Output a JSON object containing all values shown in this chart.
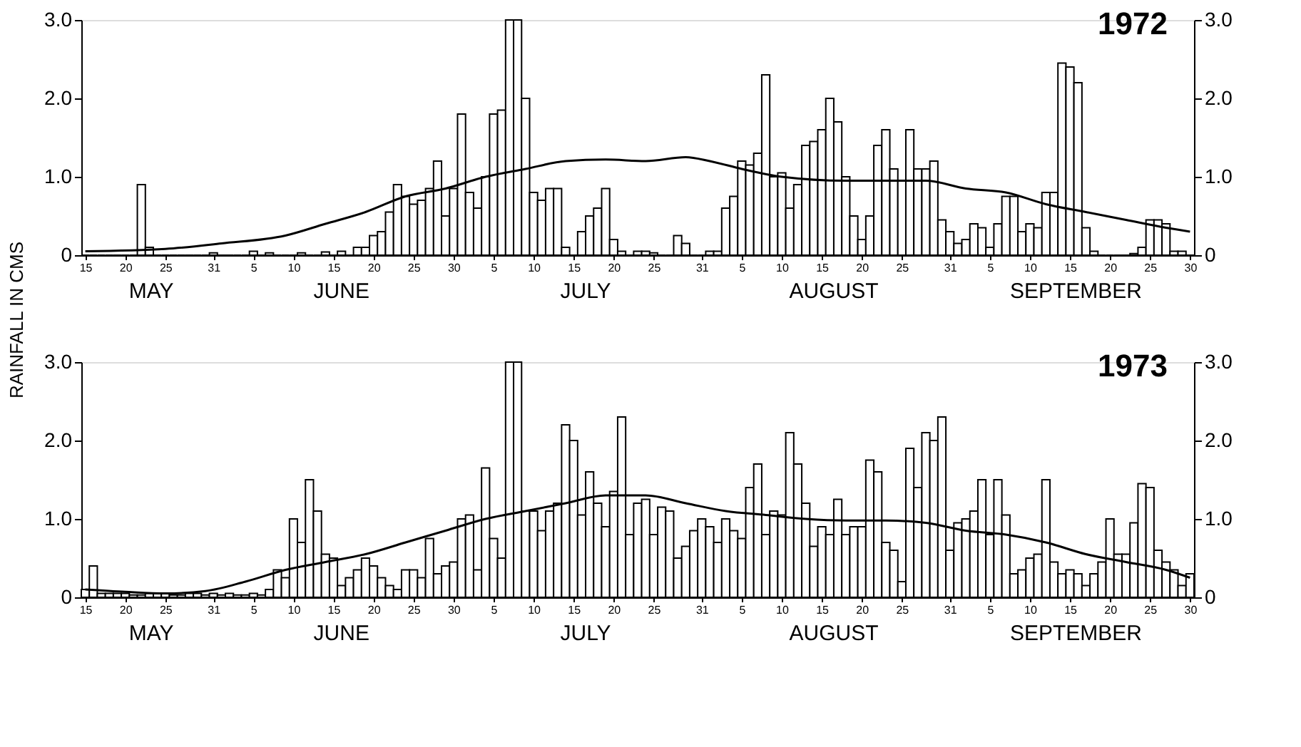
{
  "chart_data": [
    {
      "type": "bar",
      "title": "1972",
      "ylabel": "RAINFALL IN CMS",
      "annotations": [
        "MAY",
        "JUNE",
        "JULY",
        "AUGUST",
        "SEPTEMBER"
      ],
      "x": [
        "1972-05-15",
        "1972-05-16",
        "1972-05-17",
        "1972-05-18",
        "1972-05-19",
        "1972-05-20",
        "1972-05-21",
        "1972-05-22",
        "1972-05-23",
        "1972-05-24",
        "1972-05-25",
        "1972-05-26",
        "1972-05-27",
        "1972-05-28",
        "1972-05-29",
        "1972-05-30",
        "1972-05-31",
        "1972-06-01",
        "1972-06-02",
        "1972-06-03",
        "1972-06-04",
        "1972-06-05",
        "1972-06-06",
        "1972-06-07",
        "1972-06-08",
        "1972-06-09",
        "1972-06-10",
        "1972-06-11",
        "1972-06-12",
        "1972-06-13",
        "1972-06-14",
        "1972-06-15",
        "1972-06-16",
        "1972-06-17",
        "1972-06-18",
        "1972-06-19",
        "1972-06-20",
        "1972-06-21",
        "1972-06-22",
        "1972-06-23",
        "1972-06-24",
        "1972-06-25",
        "1972-06-26",
        "1972-06-27",
        "1972-06-28",
        "1972-06-29",
        "1972-06-30",
        "1972-07-01",
        "1972-07-02",
        "1972-07-03",
        "1972-07-04",
        "1972-07-05",
        "1972-07-06",
        "1972-07-07",
        "1972-07-08",
        "1972-07-09",
        "1972-07-10",
        "1972-07-11",
        "1972-07-12",
        "1972-07-13",
        "1972-07-14",
        "1972-07-15",
        "1972-07-16",
        "1972-07-17",
        "1972-07-18",
        "1972-07-19",
        "1972-07-20",
        "1972-07-21",
        "1972-07-22",
        "1972-07-23",
        "1972-07-24",
        "1972-07-25",
        "1972-07-26",
        "1972-07-27",
        "1972-07-28",
        "1972-07-29",
        "1972-07-30",
        "1972-07-31",
        "1972-08-01",
        "1972-08-02",
        "1972-08-03",
        "1972-08-04",
        "1972-08-05",
        "1972-08-06",
        "1972-08-07",
        "1972-08-08",
        "1972-08-09",
        "1972-08-10",
        "1972-08-11",
        "1972-08-12",
        "1972-08-13",
        "1972-08-14",
        "1972-08-15",
        "1972-08-16",
        "1972-08-17",
        "1972-08-18",
        "1972-08-19",
        "1972-08-20",
        "1972-08-21",
        "1972-08-22",
        "1972-08-23",
        "1972-08-24",
        "1972-08-25",
        "1972-08-26",
        "1972-08-27",
        "1972-08-28",
        "1972-08-29",
        "1972-08-30",
        "1972-08-31",
        "1972-09-01",
        "1972-09-02",
        "1972-09-03",
        "1972-09-04",
        "1972-09-05",
        "1972-09-06",
        "1972-09-07",
        "1972-09-08",
        "1972-09-09",
        "1972-09-10",
        "1972-09-11",
        "1972-09-12",
        "1972-09-13",
        "1972-09-14",
        "1972-09-15",
        "1972-09-16",
        "1972-09-17",
        "1972-09-18",
        "1972-09-19",
        "1972-09-20",
        "1972-09-21",
        "1972-09-22",
        "1972-09-23",
        "1972-09-24",
        "1972-09-25",
        "1972-09-26",
        "1972-09-27",
        "1972-09-28",
        "1972-09-29",
        "1972-09-30"
      ],
      "series": [
        {
          "color": "#000000",
          "values": [
            0,
            0,
            0,
            0,
            0,
            0,
            0,
            0.9,
            0.1,
            0,
            0,
            0,
            0,
            0,
            0,
            0,
            0.03,
            0,
            0,
            0,
            0,
            0.05,
            0,
            0.03,
            0,
            0,
            0,
            0.03,
            0,
            0,
            0.04,
            0,
            0.05,
            0,
            0.1,
            0.1,
            0.25,
            0.3,
            0.55,
            0.9,
            0.75,
            0.65,
            0.7,
            0.85,
            1.2,
            0.5,
            0.85,
            1.8,
            0.8,
            0.6,
            1.0,
            1.8,
            1.85,
            3.0,
            3.0,
            2.0,
            0.8,
            0.7,
            0.85,
            0.85,
            0.1,
            0,
            0.3,
            0.5,
            0.6,
            0.85,
            0.2,
            0.05,
            0,
            0.05,
            0.05,
            0.03,
            0,
            0,
            0.25,
            0.15,
            0,
            0,
            0.05,
            0.05,
            0.6,
            0.75,
            1.2,
            1.15,
            1.3,
            2.3,
            1.0,
            1.05,
            0.6,
            0.9,
            1.4,
            1.45,
            1.6,
            2.0,
            1.7,
            1.0,
            0.5,
            0.2,
            0.5,
            1.4,
            1.6,
            1.1,
            0.95,
            1.6,
            1.1,
            1.1,
            1.2,
            0.45,
            0.3,
            0.15,
            0.2,
            0.4,
            0.35,
            0.1,
            0.4,
            0.75,
            0.75,
            0.3,
            0.4,
            0.35,
            0.8,
            0.8,
            2.45,
            2.4,
            2.2,
            0.35,
            0.05,
            0,
            0,
            0,
            0,
            0.02,
            0.1,
            0.45,
            0.45,
            0.4,
            0.05,
            0.05,
            0
          ]
        },
        {
          "type": "line",
          "color": "#000000",
          "x": [
            "1972-05-15",
            "1972-05-25",
            "1972-06-01",
            "1972-06-09",
            "1972-06-14",
            "1972-06-19",
            "1972-06-24",
            "1972-06-29",
            "1972-07-04",
            "1972-07-09",
            "1972-07-14",
            "1972-07-19",
            "1972-07-24",
            "1972-07-29",
            "1972-08-01",
            "1972-08-05",
            "1972-08-10",
            "1972-08-18",
            "1972-08-23",
            "1972-08-28",
            "1972-09-02",
            "1972-09-07",
            "1972-09-12",
            "1972-09-17",
            "1972-09-22",
            "1972-09-27",
            "1972-09-30"
          ],
          "values": [
            0.05,
            0.08,
            0.15,
            0.25,
            0.4,
            0.55,
            0.75,
            0.85,
            1.0,
            1.1,
            1.2,
            1.22,
            1.2,
            1.25,
            1.2,
            1.1,
            1.0,
            0.95,
            0.95,
            0.95,
            0.85,
            0.8,
            0.65,
            0.55,
            0.45,
            0.35,
            0.3
          ]
        }
      ],
      "xlim": [
        "1972-05-14T12:00",
        "1972-09-30T12:00"
      ],
      "xticks": [
        {
          "value": "1972-05-15",
          "label": "15"
        },
        {
          "value": "1972-05-20",
          "label": "20"
        },
        {
          "value": "1972-05-25",
          "label": "25"
        },
        {
          "value": "1972-05-31",
          "label": "31"
        },
        {
          "value": "1972-06-05",
          "label": "5"
        },
        {
          "value": "1972-06-10",
          "label": "10"
        },
        {
          "value": "1972-06-15",
          "label": "15"
        },
        {
          "value": "1972-06-20",
          "label": "20"
        },
        {
          "value": "1972-06-25",
          "label": "25"
        },
        {
          "value": "1972-06-30",
          "label": "30"
        },
        {
          "value": "1972-07-05",
          "label": "5"
        },
        {
          "value": "1972-07-10",
          "label": "10"
        },
        {
          "value": "1972-07-15",
          "label": "15"
        },
        {
          "value": "1972-07-20",
          "label": "20"
        },
        {
          "value": "1972-07-25",
          "label": "25"
        },
        {
          "value": "1972-07-31",
          "label": "31"
        },
        {
          "value": "1972-08-05",
          "label": "5"
        },
        {
          "value": "1972-08-10",
          "label": "10"
        },
        {
          "value": "1972-08-15",
          "label": "15"
        },
        {
          "value": "1972-08-20",
          "label": "20"
        },
        {
          "value": "1972-08-25",
          "label": "25"
        },
        {
          "value": "1972-08-31",
          "label": "31"
        },
        {
          "value": "1972-09-05",
          "label": "5"
        },
        {
          "value": "1972-09-10",
          "label": "10"
        },
        {
          "value": "1972-09-15",
          "label": "15"
        },
        {
          "value": "1972-09-20",
          "label": "20"
        },
        {
          "value": "1972-09-25",
          "label": "25"
        },
        {
          "value": "1972-09-30",
          "label": "30"
        }
      ],
      "ylim": [
        0,
        3.0
      ],
      "yticks": [
        0,
        {
          "value": 1,
          "label": "1.0"
        },
        {
          "value": 2,
          "label": "2.0"
        },
        {
          "value": 3,
          "label": "3.0"
        }
      ],
      "y2lim": [
        0,
        3.0
      ],
      "y2ticks": [
        0,
        {
          "value": 1,
          "label": "1.0"
        },
        {
          "value": 2,
          "label": "2.0"
        },
        {
          "value": 3,
          "label": "3.0"
        }
      ]
    },
    {
      "type": "bar",
      "title": "1973",
      "annotations": [
        "MAY",
        "JUNE",
        "JULY",
        "AUGUST",
        "SEPTEMBER"
      ],
      "x": [
        "1973-05-15",
        "1973-05-16",
        "1973-05-17",
        "1973-05-18",
        "1973-05-19",
        "1973-05-20",
        "1973-05-21",
        "1973-05-22",
        "1973-05-23",
        "1973-05-24",
        "1973-05-25",
        "1973-05-26",
        "1973-05-27",
        "1973-05-28",
        "1973-05-29",
        "1973-05-30",
        "1973-05-31",
        "1973-06-01",
        "1973-06-02",
        "1973-06-03",
        "1973-06-04",
        "1973-06-05",
        "1973-06-06",
        "1973-06-07",
        "1973-06-08",
        "1973-06-09",
        "1973-06-10",
        "1973-06-11",
        "1973-06-12",
        "1973-06-13",
        "1973-06-14",
        "1973-06-15",
        "1973-06-16",
        "1973-06-17",
        "1973-06-18",
        "1973-06-19",
        "1973-06-20",
        "1973-06-21",
        "1973-06-22",
        "1973-06-23",
        "1973-06-24",
        "1973-06-25",
        "1973-06-26",
        "1973-06-27",
        "1973-06-28",
        "1973-06-29",
        "1973-06-30",
        "1973-07-01",
        "1973-07-02",
        "1973-07-03",
        "1973-07-04",
        "1973-07-05",
        "1973-07-06",
        "1973-07-07",
        "1973-07-08",
        "1973-07-09",
        "1973-07-10",
        "1973-07-11",
        "1973-07-12",
        "1973-07-13",
        "1973-07-14",
        "1973-07-15",
        "1973-07-16",
        "1973-07-17",
        "1973-07-18",
        "1973-07-19",
        "1973-07-20",
        "1973-07-21",
        "1973-07-22",
        "1973-07-23",
        "1973-07-24",
        "1973-07-25",
        "1973-07-26",
        "1973-07-27",
        "1973-07-28",
        "1973-07-29",
        "1973-07-30",
        "1973-07-31",
        "1973-08-01",
        "1973-08-02",
        "1973-08-03",
        "1973-08-04",
        "1973-08-05",
        "1973-08-06",
        "1973-08-07",
        "1973-08-08",
        "1973-08-09",
        "1973-08-10",
        "1973-08-11",
        "1973-08-12",
        "1973-08-13",
        "1973-08-14",
        "1973-08-15",
        "1973-08-16",
        "1973-08-17",
        "1973-08-18",
        "1973-08-19",
        "1973-08-20",
        "1973-08-21",
        "1973-08-22",
        "1973-08-23",
        "1973-08-24",
        "1973-08-25",
        "1973-08-26",
        "1973-08-27",
        "1973-08-28",
        "1973-08-29",
        "1973-08-30",
        "1973-08-31",
        "1973-09-01",
        "1973-09-02",
        "1973-09-03",
        "1973-09-04",
        "1973-09-05",
        "1973-09-06",
        "1973-09-07",
        "1973-09-08",
        "1973-09-09",
        "1973-09-10",
        "1973-09-11",
        "1973-09-12",
        "1973-09-13",
        "1973-09-14",
        "1973-09-15",
        "1973-09-16",
        "1973-09-17",
        "1973-09-18",
        "1973-09-19",
        "1973-09-20",
        "1973-09-21",
        "1973-09-22",
        "1973-09-23",
        "1973-09-24",
        "1973-09-25",
        "1973-09-26",
        "1973-09-27",
        "1973-09-28",
        "1973-09-29",
        "1973-09-30"
      ],
      "series": [
        {
          "color": "#000000",
          "values": [
            0.1,
            0.4,
            0.05,
            0.05,
            0.05,
            0.05,
            0.03,
            0.03,
            0.05,
            0.05,
            0.05,
            0.03,
            0.03,
            0.05,
            0.05,
            0.03,
            0.05,
            0.03,
            0.05,
            0.03,
            0.03,
            0.05,
            0.03,
            0.1,
            0.35,
            0.25,
            1.0,
            0.7,
            1.5,
            1.1,
            0.55,
            0.5,
            0.15,
            0.25,
            0.35,
            0.5,
            0.4,
            0.25,
            0.15,
            0.1,
            0.35,
            0.35,
            0.25,
            0.75,
            0.3,
            0.4,
            0.45,
            1.0,
            1.05,
            0.35,
            1.65,
            0.75,
            0.5,
            3.0,
            3.0,
            1.1,
            1.1,
            0.85,
            1.1,
            1.2,
            2.2,
            2.0,
            1.05,
            1.6,
            1.2,
            0.9,
            1.35,
            2.3,
            0.8,
            1.2,
            1.25,
            0.8,
            1.15,
            1.1,
            0.5,
            0.65,
            0.85,
            1.0,
            0.9,
            0.7,
            1.0,
            0.85,
            0.75,
            1.4,
            1.7,
            0.8,
            1.1,
            1.05,
            2.1,
            1.7,
            1.2,
            0.65,
            0.9,
            0.8,
            1.25,
            0.8,
            0.9,
            0.9,
            1.75,
            1.6,
            0.7,
            0.6,
            0.2,
            1.9,
            1.4,
            2.1,
            2.0,
            2.3,
            0.6,
            0.95,
            1.0,
            1.1,
            1.5,
            0.8,
            1.5,
            1.05,
            0.3,
            0.35,
            0.5,
            0.55,
            1.5,
            0.45,
            0.3,
            0.35,
            0.3,
            0.15,
            0.3,
            0.45,
            1.0,
            0.55,
            0.55,
            0.95,
            1.45,
            1.4,
            0.6,
            0.45,
            0.35,
            0.15,
            0.3
          ]
        },
        {
          "type": "line",
          "color": "#000000",
          "x": [
            "1973-05-15",
            "1973-05-20",
            "1973-05-25",
            "1973-05-30",
            "1973-06-04",
            "1973-06-09",
            "1973-06-14",
            "1973-06-19",
            "1973-06-24",
            "1973-06-29",
            "1973-07-04",
            "1973-07-09",
            "1973-07-14",
            "1973-07-19",
            "1973-07-24",
            "1973-07-29",
            "1973-08-03",
            "1973-08-08",
            "1973-08-13",
            "1973-08-18",
            "1973-08-23",
            "1973-08-28",
            "1973-09-02",
            "1973-09-07",
            "1973-09-12",
            "1973-09-17",
            "1973-09-22",
            "1973-09-27",
            "1973-09-30"
          ],
          "values": [
            0.1,
            0.07,
            0.05,
            0.08,
            0.2,
            0.35,
            0.45,
            0.55,
            0.7,
            0.85,
            1.0,
            1.1,
            1.2,
            1.3,
            1.3,
            1.2,
            1.1,
            1.05,
            1.0,
            0.98,
            0.98,
            0.95,
            0.85,
            0.8,
            0.7,
            0.55,
            0.45,
            0.35,
            0.25
          ]
        }
      ],
      "xlim": [
        "1973-05-14T12:00",
        "1973-09-30T12:00"
      ],
      "xticks": [
        {
          "value": "1973-05-15",
          "label": "15"
        },
        {
          "value": "1973-05-20",
          "label": "20"
        },
        {
          "value": "1973-05-25",
          "label": "25"
        },
        {
          "value": "1973-05-31",
          "label": "31"
        },
        {
          "value": "1973-06-05",
          "label": "5"
        },
        {
          "value": "1973-06-10",
          "label": "10"
        },
        {
          "value": "1973-06-15",
          "label": "15"
        },
        {
          "value": "1973-06-20",
          "label": "20"
        },
        {
          "value": "1973-06-25",
          "label": "25"
        },
        {
          "value": "1973-06-30",
          "label": "30"
        },
        {
          "value": "1973-07-05",
          "label": "5"
        },
        {
          "value": "1973-07-10",
          "label": "10"
        },
        {
          "value": "1973-07-15",
          "label": "15"
        },
        {
          "value": "1973-07-20",
          "label": "20"
        },
        {
          "value": "1973-07-25",
          "label": "25"
        },
        {
          "value": "1973-07-31",
          "label": "31"
        },
        {
          "value": "1973-08-05",
          "label": "5"
        },
        {
          "value": "1973-08-10",
          "label": "10"
        },
        {
          "value": "1973-08-15",
          "label": "15"
        },
        {
          "value": "1973-08-20",
          "label": "20"
        },
        {
          "value": "1973-08-25",
          "label": "25"
        },
        {
          "value": "1973-08-31",
          "label": "31"
        },
        {
          "value": "1973-09-05",
          "label": "5"
        },
        {
          "value": "1973-09-10",
          "label": "10"
        },
        {
          "value": "1973-09-15",
          "label": "15"
        },
        {
          "value": "1973-09-20",
          "label": "20"
        },
        {
          "value": "1973-09-25",
          "label": "25"
        },
        {
          "value": "1973-09-30",
          "label": "30"
        }
      ],
      "ylim": [
        0,
        3.0
      ],
      "yticks": [
        0,
        {
          "value": 1,
          "label": "1.0"
        },
        {
          "value": 2,
          "label": "2.0"
        },
        {
          "value": 3,
          "label": "3.0"
        }
      ],
      "y2lim": [
        0,
        3.0
      ],
      "y2ticks": [
        0,
        {
          "value": 1,
          "label": "1.0"
        },
        {
          "value": 2,
          "label": "2.0"
        },
        {
          "value": 3,
          "label": "3.0"
        }
      ]
    }
  ]
}
